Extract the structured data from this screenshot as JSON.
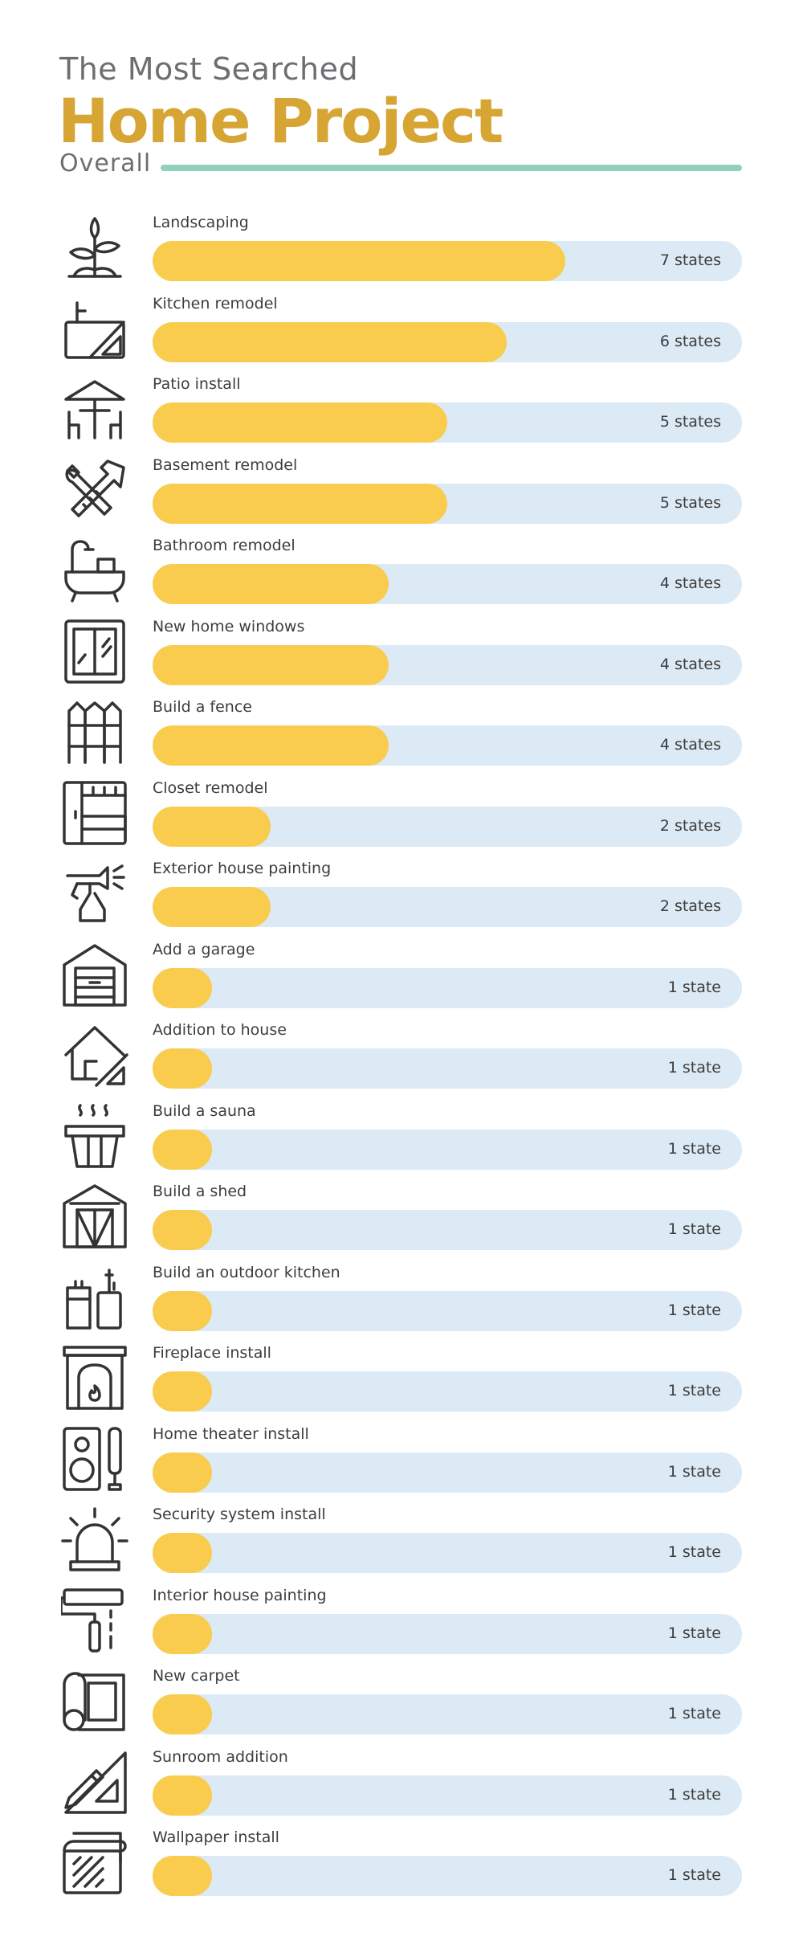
{
  "header": {
    "subtitle": "The Most Searched",
    "title": "Home Project",
    "section": "Overall"
  },
  "colors": {
    "title": "#d6a534",
    "bar_fill": "#f9cc4e",
    "bar_track": "#dbeaf5",
    "divider": "#8fd1b9",
    "icon_stroke": "#333333"
  },
  "chart_data": {
    "type": "bar",
    "orientation": "horizontal",
    "title": "Home Project",
    "subtitle": "The Most Searched",
    "xlim": [
      0,
      10
    ],
    "categories": [
      "Landscaping",
      "Kitchen remodel",
      "Patio install",
      "Basement remodel",
      "Bathroom remodel",
      "New home windows",
      "Build a fence",
      "Closet remodel",
      "Exterior house painting",
      "Add a garage",
      "Addition to house",
      "Build a sauna",
      "Build a shed",
      "Build an outdoor kitchen",
      "Fireplace install",
      "Home theater install",
      "Security system install",
      "Interior house painting",
      "New carpet",
      "Sunroom addition",
      "Wallpaper install"
    ],
    "values": [
      7,
      6,
      5,
      5,
      4,
      4,
      4,
      2,
      2,
      1,
      1,
      1,
      1,
      1,
      1,
      1,
      1,
      1,
      1,
      1,
      1
    ],
    "value_labels": [
      "7 states",
      "6 states",
      "5 states",
      "5 states",
      "4 states",
      "4 states",
      "4 states",
      "2 states",
      "2 states",
      "1 state",
      "1 state",
      "1 state",
      "1 state",
      "1 state",
      "1 state",
      "1 state",
      "1 state",
      "1 state",
      "1 state",
      "1 state",
      "1 state"
    ],
    "icons": [
      "plant-icon",
      "kitchen-sink-icon",
      "patio-umbrella-icon",
      "tools-icon",
      "bathtub-icon",
      "window-icon",
      "fence-icon",
      "closet-icon",
      "spray-bottle-icon",
      "garage-icon",
      "house-addition-icon",
      "sauna-icon",
      "shed-icon",
      "outdoor-kitchen-icon",
      "fireplace-icon",
      "speaker-icon",
      "alarm-icon",
      "paint-roller-icon",
      "carpet-roll-icon",
      "ruler-pencil-icon",
      "wallpaper-icon"
    ]
  }
}
